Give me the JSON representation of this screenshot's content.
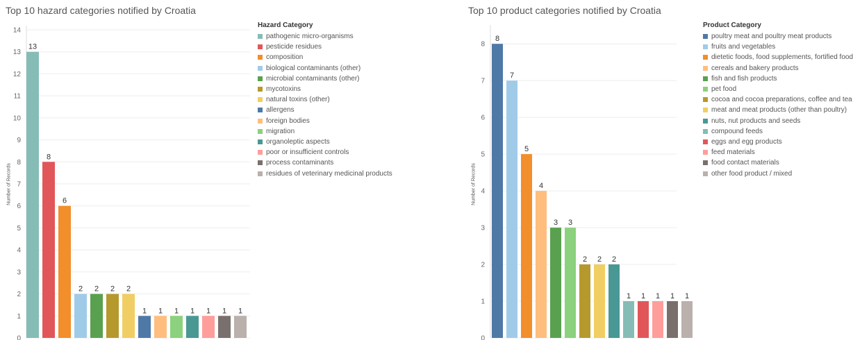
{
  "chart_data": [
    {
      "type": "bar",
      "title": "Top 10 hazard categories notified by Croatia",
      "ylabel": "Number of Records",
      "xlabel": "",
      "ylim": [
        0,
        14
      ],
      "yticks": [
        0,
        1,
        2,
        3,
        4,
        5,
        6,
        7,
        8,
        9,
        10,
        11,
        12,
        13,
        14
      ],
      "grid": true,
      "legend_position": "right",
      "legend_title": "Hazard Category",
      "categories": [
        "pathogenic micro-organisms",
        "pesticide residues",
        "composition",
        "biological contaminants (other)",
        "microbial contaminants (other)",
        "mycotoxins",
        "natural toxins (other)",
        "allergens",
        "foreign bodies",
        "migration",
        "organoleptic aspects",
        "poor or insufficient controls",
        "process contaminants",
        "residues of veterinary medicinal products"
      ],
      "values": [
        13,
        8,
        6,
        2,
        2,
        2,
        2,
        1,
        1,
        1,
        1,
        1,
        1,
        1
      ],
      "colors": [
        "#86bcb6",
        "#e15759",
        "#f28e2b",
        "#a0cbe8",
        "#59a14f",
        "#b6992d",
        "#f1ce63",
        "#4e79a7",
        "#ffbe7d",
        "#8cd17d",
        "#499894",
        "#ff9d9a",
        "#79706e",
        "#bab0ac"
      ]
    },
    {
      "type": "bar",
      "title": "Top 10 product categories notified by Croatia",
      "ylabel": "Number of Records",
      "xlabel": "",
      "ylim": [
        0,
        8.4
      ],
      "yticks": [
        0,
        1,
        2,
        3,
        4,
        5,
        6,
        7,
        8
      ],
      "grid": true,
      "legend_position": "right",
      "legend_title": "Product Category",
      "categories": [
        "poultry meat and poultry meat products",
        "fruits and vegetables",
        "dietetic foods, food supplements, fortified foods",
        "cereals and bakery products",
        "fish and fish products",
        "pet food",
        "cocoa and cocoa preparations, coffee and tea",
        "meat and meat products (other than poultry)",
        "nuts, nut products and seeds",
        "compound feeds",
        "eggs and egg products",
        "feed materials",
        "food contact materials",
        "other food product / mixed"
      ],
      "values": [
        8,
        7,
        5,
        4,
        3,
        3,
        2,
        2,
        2,
        1,
        1,
        1,
        1,
        1
      ],
      "colors": [
        "#4e79a7",
        "#a0cbe8",
        "#f28e2b",
        "#ffbe7d",
        "#59a14f",
        "#8cd17d",
        "#b6992d",
        "#f1ce63",
        "#499894",
        "#86bcb6",
        "#e15759",
        "#ff9d9a",
        "#79706e",
        "#bab0ac"
      ]
    }
  ]
}
